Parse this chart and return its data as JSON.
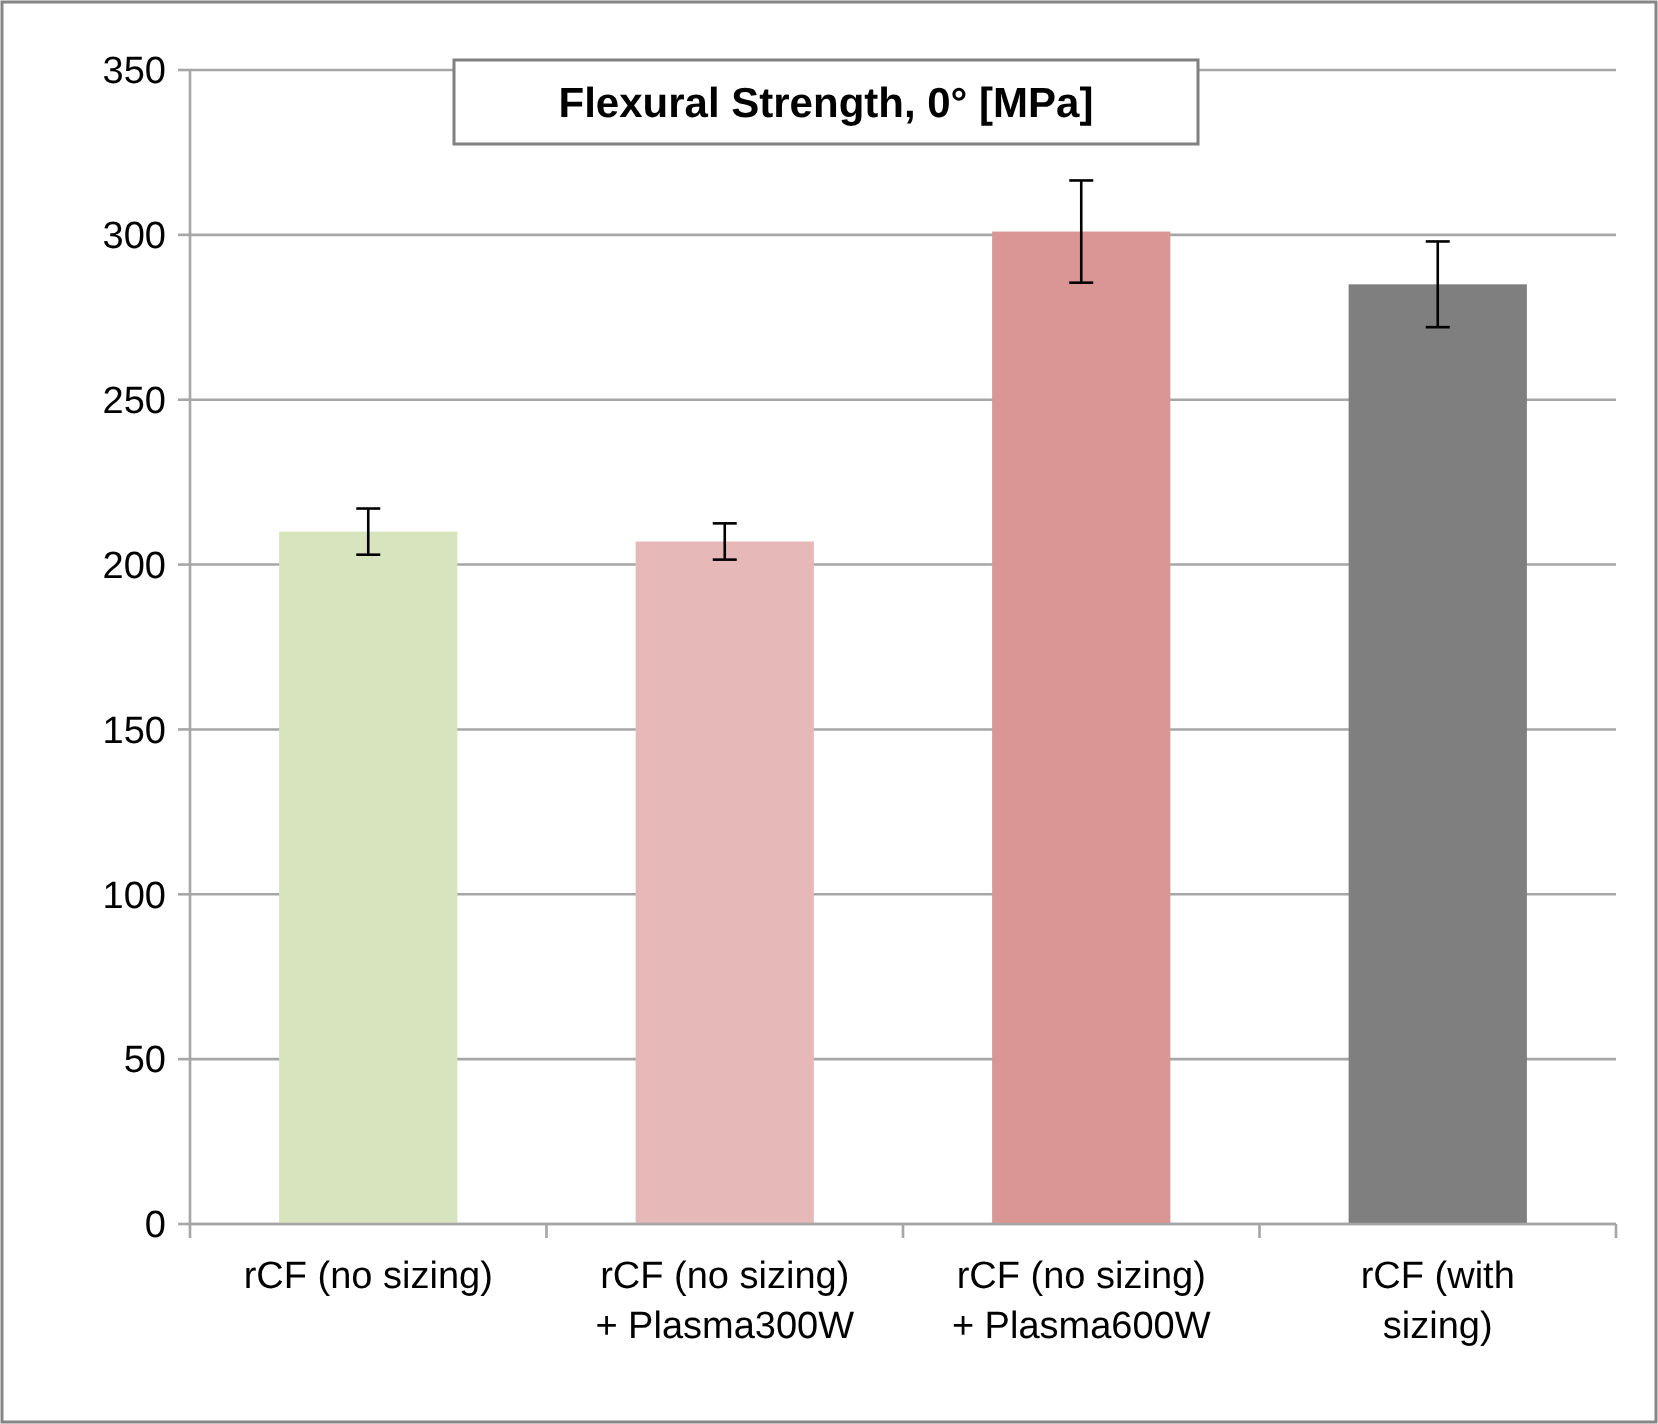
{
  "chart_data": {
    "type": "bar",
    "title": "Flexural Strength, 0° [MPa]",
    "categories": [
      "rCF (no sizing)",
      "rCF (no sizing) + Plasma300W",
      "rCF (no sizing) + Plasma600W",
      "rCF (with sizing)"
    ],
    "values": [
      210,
      207,
      301,
      285
    ],
    "colors": [
      "#d7e4bd",
      "#e6b9b8",
      "#d99694",
      "#7f7f7f"
    ],
    "errors": [
      7,
      5.5,
      15.5,
      13
    ],
    "ylim": [
      0,
      350
    ],
    "yticks": [
      0,
      50,
      100,
      150,
      200,
      250,
      300,
      350
    ],
    "grid": "y"
  }
}
